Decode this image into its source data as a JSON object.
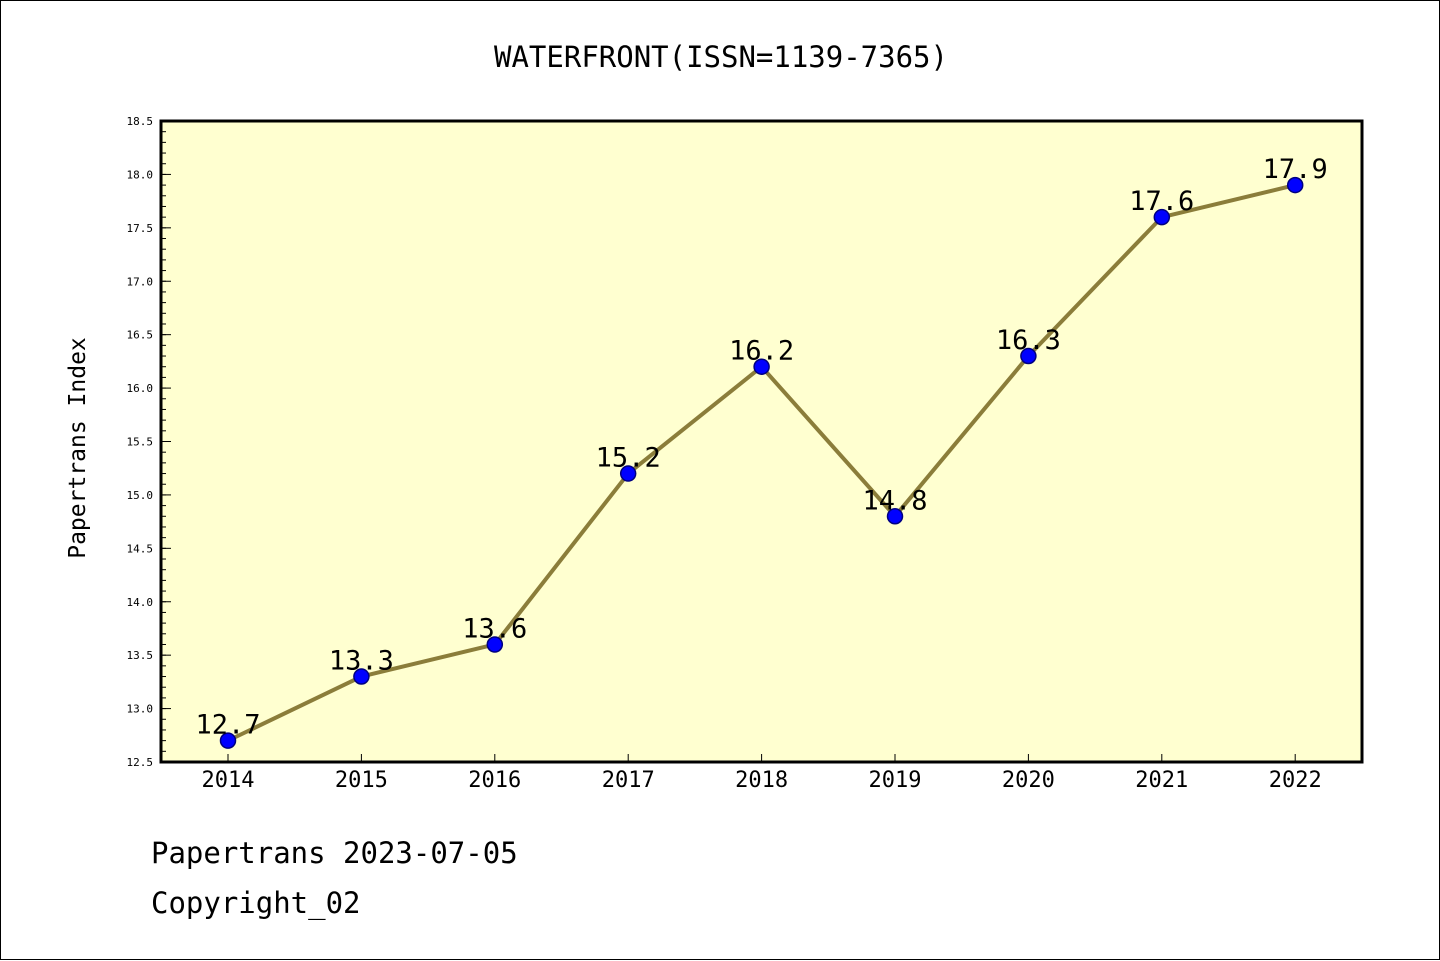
{
  "chart_data": {
    "type": "line",
    "title": "WATERFRONT(ISSN=1139-7365)",
    "xlabel": "",
    "ylabel": "Papertrans Index",
    "categories": [
      "2014",
      "2015",
      "2016",
      "2017",
      "2018",
      "2019",
      "2020",
      "2021",
      "2022"
    ],
    "series": [
      {
        "values": [
          12.7,
          13.3,
          13.6,
          15.2,
          16.2,
          14.8,
          16.3,
          17.6,
          17.9
        ],
        "labels": [
          "12.7",
          "13.3",
          "13.6",
          "15.2",
          "16.2",
          "14.8",
          "16.3",
          "17.6",
          "17.9"
        ]
      }
    ],
    "ylim": [
      12.5,
      18.5
    ],
    "yticks": [
      "12.5",
      "13.0",
      "13.5",
      "14.0",
      "14.5",
      "15.0",
      "15.5",
      "16.0",
      "16.5",
      "17.0",
      "17.5",
      "18.0",
      "18.5"
    ],
    "grid": false,
    "legend": "none",
    "colors": {
      "plot_background": "#ffffd0",
      "line": "#8b7d3a",
      "marker_fill": "#0000ff",
      "marker_edge": "#000080",
      "axis": "#000000"
    }
  },
  "footer": {
    "date_line": "Papertrans 2023-07-05",
    "copyright_line": "Copyright_02"
  }
}
